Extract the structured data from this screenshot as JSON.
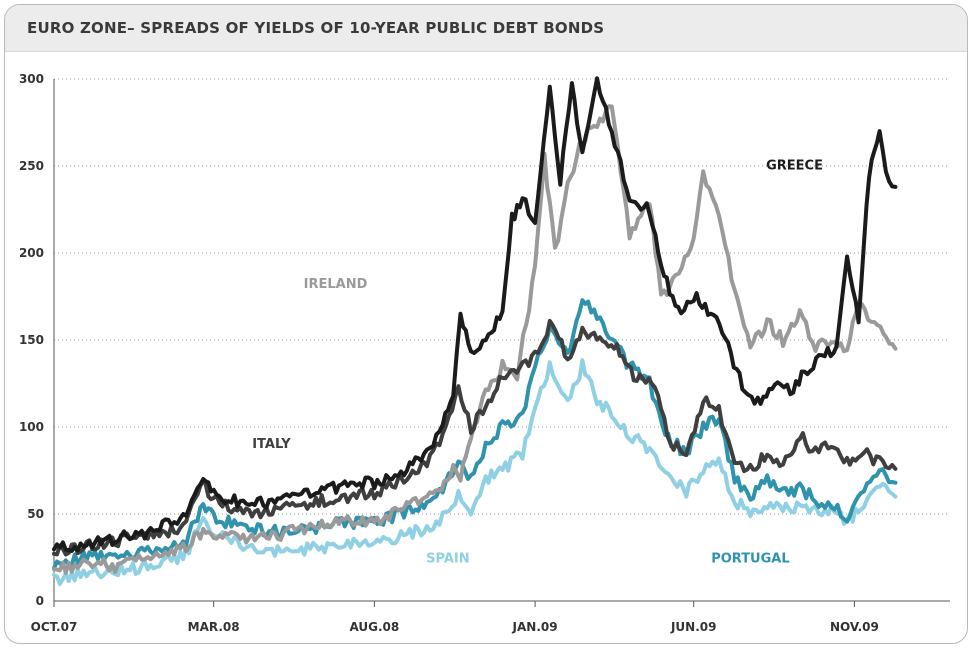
{
  "chart_data": {
    "type": "line",
    "title": "EURO ZONE– SPREADS OF YIELDS OF 10-YEAR PUBLIC DEBT BONDS",
    "xlabel": "",
    "ylabel": "",
    "ylim": [
      0,
      300
    ],
    "yticks": [
      0,
      50,
      100,
      150,
      200,
      250,
      300
    ],
    "x_ticks": [
      "OCT.07",
      "MAR.08",
      "AUG.08",
      "JAN.09",
      "JUN.09",
      "NOV.09"
    ],
    "x_range": [
      "2007-10-01",
      "2010-01-31"
    ],
    "grid": true,
    "colors": {
      "GREECE": "#1b1b1b",
      "IRELAND": "#9a9a9a",
      "ITALY": "#3f3f3f",
      "PORTUGAL": "#2f93ad",
      "SPAIN": "#8fd0e4"
    },
    "series": [
      {
        "name": "GREECE",
        "points": [
          [
            "2007-10-01",
            30
          ],
          [
            "2007-11-01",
            33
          ],
          [
            "2007-12-01",
            36
          ],
          [
            "2008-01-01",
            40
          ],
          [
            "2008-02-01",
            48
          ],
          [
            "2008-02-20",
            70
          ],
          [
            "2008-03-01",
            62
          ],
          [
            "2008-04-01",
            55
          ],
          [
            "2008-05-01",
            58
          ],
          [
            "2008-06-01",
            62
          ],
          [
            "2008-07-01",
            66
          ],
          [
            "2008-08-01",
            68
          ],
          [
            "2008-09-01",
            75
          ],
          [
            "2008-09-20",
            85
          ],
          [
            "2008-10-05",
            100
          ],
          [
            "2008-10-15",
            120
          ],
          [
            "2008-10-22",
            165
          ],
          [
            "2008-11-01",
            145
          ],
          [
            "2008-11-15",
            150
          ],
          [
            "2008-12-01",
            165
          ],
          [
            "2008-12-10",
            220
          ],
          [
            "2008-12-20",
            230
          ],
          [
            "2009-01-01",
            220
          ],
          [
            "2009-01-15",
            295
          ],
          [
            "2009-01-25",
            240
          ],
          [
            "2009-02-05",
            300
          ],
          [
            "2009-02-15",
            255
          ],
          [
            "2009-03-01",
            298
          ],
          [
            "2009-03-15",
            270
          ],
          [
            "2009-04-01",
            230
          ],
          [
            "2009-04-20",
            225
          ],
          [
            "2009-05-01",
            190
          ],
          [
            "2009-05-20",
            165
          ],
          [
            "2009-06-01",
            175
          ],
          [
            "2009-06-20",
            165
          ],
          [
            "2009-07-01",
            150
          ],
          [
            "2009-07-20",
            120
          ],
          [
            "2009-08-01",
            115
          ],
          [
            "2009-08-20",
            125
          ],
          [
            "2009-09-01",
            120
          ],
          [
            "2009-09-20",
            135
          ],
          [
            "2009-10-01",
            140
          ],
          [
            "2009-10-15",
            145
          ],
          [
            "2009-10-25",
            200
          ],
          [
            "2009-11-05",
            160
          ],
          [
            "2009-11-15",
            245
          ],
          [
            "2009-11-25",
            270
          ],
          [
            "2009-12-01",
            245
          ],
          [
            "2009-12-10",
            238
          ]
        ]
      },
      {
        "name": "IRELAND",
        "points": [
          [
            "2007-10-01",
            18
          ],
          [
            "2007-11-01",
            22
          ],
          [
            "2007-12-01",
            20
          ],
          [
            "2008-01-01",
            25
          ],
          [
            "2008-02-01",
            30
          ],
          [
            "2008-02-20",
            40
          ],
          [
            "2008-03-01",
            38
          ],
          [
            "2008-04-01",
            36
          ],
          [
            "2008-05-01",
            38
          ],
          [
            "2008-06-01",
            42
          ],
          [
            "2008-07-01",
            48
          ],
          [
            "2008-08-01",
            45
          ],
          [
            "2008-09-01",
            55
          ],
          [
            "2008-10-01",
            65
          ],
          [
            "2008-10-15",
            75
          ],
          [
            "2008-10-22",
            70
          ],
          [
            "2008-11-01",
            95
          ],
          [
            "2008-11-15",
            120
          ],
          [
            "2008-12-01",
            135
          ],
          [
            "2008-12-15",
            130
          ],
          [
            "2009-01-01",
            190
          ],
          [
            "2009-01-10",
            255
          ],
          [
            "2009-01-20",
            200
          ],
          [
            "2009-02-01",
            240
          ],
          [
            "2009-02-15",
            265
          ],
          [
            "2009-03-01",
            275
          ],
          [
            "2009-03-15",
            285
          ],
          [
            "2009-04-01",
            210
          ],
          [
            "2009-04-20",
            230
          ],
          [
            "2009-05-01",
            175
          ],
          [
            "2009-05-15",
            185
          ],
          [
            "2009-06-01",
            210
          ],
          [
            "2009-06-10",
            245
          ],
          [
            "2009-06-25",
            220
          ],
          [
            "2009-07-10",
            180
          ],
          [
            "2009-07-25",
            145
          ],
          [
            "2009-08-10",
            160
          ],
          [
            "2009-08-25",
            150
          ],
          [
            "2009-09-10",
            165
          ],
          [
            "2009-09-25",
            145
          ],
          [
            "2009-10-10",
            150
          ],
          [
            "2009-10-25",
            145
          ],
          [
            "2009-11-05",
            170
          ],
          [
            "2009-11-20",
            160
          ],
          [
            "2009-12-10",
            145
          ]
        ]
      },
      {
        "name": "ITALY",
        "points": [
          [
            "2007-10-01",
            28
          ],
          [
            "2007-11-01",
            32
          ],
          [
            "2007-12-01",
            35
          ],
          [
            "2008-01-01",
            38
          ],
          [
            "2008-02-01",
            42
          ],
          [
            "2008-02-20",
            68
          ],
          [
            "2008-03-01",
            58
          ],
          [
            "2008-04-01",
            50
          ],
          [
            "2008-05-01",
            52
          ],
          [
            "2008-06-01",
            56
          ],
          [
            "2008-07-01",
            60
          ],
          [
            "2008-08-01",
            62
          ],
          [
            "2008-09-01",
            72
          ],
          [
            "2008-09-20",
            80
          ],
          [
            "2008-10-05",
            95
          ],
          [
            "2008-10-20",
            120
          ],
          [
            "2008-11-01",
            100
          ],
          [
            "2008-11-15",
            110
          ],
          [
            "2008-12-01",
            130
          ],
          [
            "2008-12-20",
            135
          ],
          [
            "2009-01-01",
            140
          ],
          [
            "2009-01-15",
            160
          ],
          [
            "2009-02-01",
            140
          ],
          [
            "2009-02-15",
            155
          ],
          [
            "2009-03-01",
            150
          ],
          [
            "2009-03-20",
            145
          ],
          [
            "2009-04-05",
            130
          ],
          [
            "2009-04-25",
            125
          ],
          [
            "2009-05-10",
            90
          ],
          [
            "2009-05-25",
            85
          ],
          [
            "2009-06-10",
            115
          ],
          [
            "2009-06-25",
            110
          ],
          [
            "2009-07-10",
            80
          ],
          [
            "2009-07-25",
            75
          ],
          [
            "2009-08-10",
            85
          ],
          [
            "2009-08-25",
            80
          ],
          [
            "2009-09-10",
            95
          ],
          [
            "2009-09-25",
            85
          ],
          [
            "2009-10-10",
            90
          ],
          [
            "2009-10-25",
            80
          ],
          [
            "2009-11-10",
            85
          ],
          [
            "2009-11-25",
            80
          ],
          [
            "2009-12-10",
            76
          ]
        ]
      },
      {
        "name": "PORTUGAL",
        "points": [
          [
            "2007-10-01",
            22
          ],
          [
            "2007-11-01",
            25
          ],
          [
            "2007-12-01",
            27
          ],
          [
            "2008-01-01",
            28
          ],
          [
            "2008-02-01",
            32
          ],
          [
            "2008-02-20",
            55
          ],
          [
            "2008-03-01",
            48
          ],
          [
            "2008-04-01",
            42
          ],
          [
            "2008-05-01",
            40
          ],
          [
            "2008-06-01",
            42
          ],
          [
            "2008-07-01",
            45
          ],
          [
            "2008-08-01",
            46
          ],
          [
            "2008-09-01",
            50
          ],
          [
            "2008-09-20",
            58
          ],
          [
            "2008-10-05",
            65
          ],
          [
            "2008-10-20",
            80
          ],
          [
            "2008-11-01",
            70
          ],
          [
            "2008-11-15",
            90
          ],
          [
            "2008-12-01",
            100
          ],
          [
            "2008-12-20",
            105
          ],
          [
            "2009-01-01",
            135
          ],
          [
            "2009-01-15",
            155
          ],
          [
            "2009-02-01",
            140
          ],
          [
            "2009-02-15",
            175
          ],
          [
            "2009-03-01",
            165
          ],
          [
            "2009-03-15",
            150
          ],
          [
            "2009-04-01",
            135
          ],
          [
            "2009-04-20",
            125
          ],
          [
            "2009-05-05",
            95
          ],
          [
            "2009-05-25",
            85
          ],
          [
            "2009-06-10",
            100
          ],
          [
            "2009-06-25",
            105
          ],
          [
            "2009-07-10",
            70
          ],
          [
            "2009-07-25",
            60
          ],
          [
            "2009-08-10",
            70
          ],
          [
            "2009-08-25",
            62
          ],
          [
            "2009-09-10",
            65
          ],
          [
            "2009-09-25",
            58
          ],
          [
            "2009-10-10",
            55
          ],
          [
            "2009-10-25",
            48
          ],
          [
            "2009-11-10",
            62
          ],
          [
            "2009-11-25",
            75
          ],
          [
            "2009-12-10",
            68
          ]
        ]
      },
      {
        "name": "SPAIN",
        "points": [
          [
            "2007-10-01",
            12
          ],
          [
            "2007-11-01",
            16
          ],
          [
            "2007-12-01",
            18
          ],
          [
            "2008-01-01",
            20
          ],
          [
            "2008-02-01",
            25
          ],
          [
            "2008-02-20",
            45
          ],
          [
            "2008-03-01",
            38
          ],
          [
            "2008-04-01",
            32
          ],
          [
            "2008-05-01",
            28
          ],
          [
            "2008-06-01",
            30
          ],
          [
            "2008-07-01",
            32
          ],
          [
            "2008-08-01",
            34
          ],
          [
            "2008-09-01",
            38
          ],
          [
            "2008-09-20",
            42
          ],
          [
            "2008-10-05",
            48
          ],
          [
            "2008-10-20",
            60
          ],
          [
            "2008-11-01",
            52
          ],
          [
            "2008-11-15",
            70
          ],
          [
            "2008-12-01",
            75
          ],
          [
            "2008-12-20",
            85
          ],
          [
            "2009-01-01",
            110
          ],
          [
            "2009-01-15",
            135
          ],
          [
            "2009-02-01",
            115
          ],
          [
            "2009-02-15",
            135
          ],
          [
            "2009-03-01",
            115
          ],
          [
            "2009-03-15",
            108
          ],
          [
            "2009-04-01",
            95
          ],
          [
            "2009-04-20",
            88
          ],
          [
            "2009-05-05",
            75
          ],
          [
            "2009-05-25",
            62
          ],
          [
            "2009-06-10",
            75
          ],
          [
            "2009-06-25",
            80
          ],
          [
            "2009-07-10",
            58
          ],
          [
            "2009-07-25",
            50
          ],
          [
            "2009-08-10",
            55
          ],
          [
            "2009-08-25",
            52
          ],
          [
            "2009-09-10",
            55
          ],
          [
            "2009-09-25",
            52
          ],
          [
            "2009-10-10",
            52
          ],
          [
            "2009-10-25",
            45
          ],
          [
            "2009-11-10",
            55
          ],
          [
            "2009-11-25",
            65
          ],
          [
            "2009-12-10",
            60
          ]
        ]
      }
    ],
    "annotations": [
      {
        "text": "GREECE",
        "series": "GREECE",
        "at": [
          "2009-09-05",
          248
        ]
      },
      {
        "text": "IRELAND",
        "series": "IRELAND",
        "at": [
          "2008-06-25",
          180
        ]
      },
      {
        "text": "ITALY",
        "series": "ITALY",
        "at": [
          "2008-04-25",
          88
        ]
      },
      {
        "text": "SPAIN",
        "series": "SPAIN",
        "at": [
          "2008-10-10",
          22
        ]
      },
      {
        "text": "PORTUGAL",
        "series": "PORTUGAL",
        "at": [
          "2009-07-25",
          22
        ]
      }
    ]
  }
}
